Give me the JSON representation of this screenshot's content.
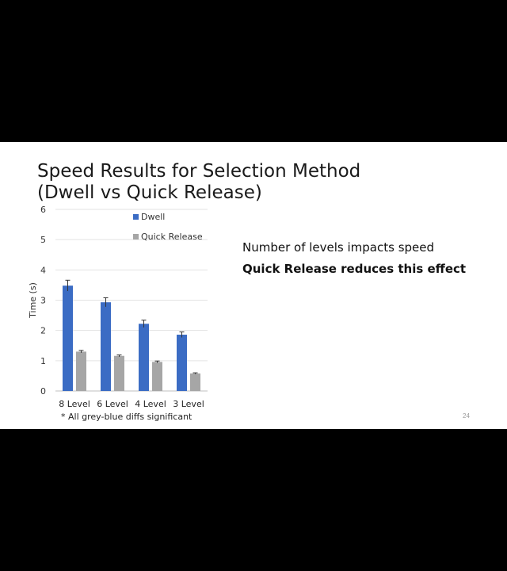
{
  "slide": {
    "title_line1": "Speed Results for Selection Method",
    "title_line2": "(Dwell vs Quick Release)",
    "bullets": [
      "Number of levels impacts speed",
      "Quick Release reduces this effect"
    ],
    "footnote": "* All grey-blue diffs significant",
    "page_number": "24"
  },
  "chart_data": {
    "type": "bar",
    "categories": [
      "8 Level",
      "6 Level",
      "4 Level",
      "3 Level"
    ],
    "series": [
      {
        "name": "Dwell",
        "color": "#3b6cc4",
        "values": [
          3.48,
          2.93,
          2.22,
          1.86
        ],
        "errors": [
          0.18,
          0.15,
          0.12,
          0.09
        ]
      },
      {
        "name": "Quick Release",
        "color": "#a6a6a6",
        "values": [
          1.3,
          1.16,
          0.96,
          0.58
        ],
        "errors": [
          0.04,
          0.03,
          0.03,
          0.02
        ]
      }
    ],
    "ylabel": "Time (s)",
    "ylim": [
      0,
      6
    ],
    "yticks": [
      0,
      1,
      2,
      3,
      4,
      5,
      6
    ],
    "grid": true,
    "legend": "top-right"
  }
}
